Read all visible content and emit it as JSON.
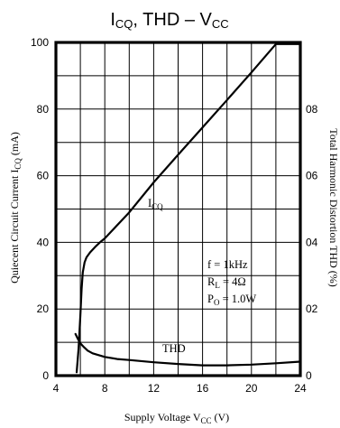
{
  "chart_data": {
    "type": "line",
    "title": {
      "main": "I",
      "sub": "CQ",
      "rest": ", THD – V",
      "sub2": "CC"
    },
    "xlabel": {
      "main": "Supply Voltage V",
      "sub": "CC",
      "rest": " (V)"
    },
    "ylabel_left": {
      "main": "Quiecent Circuit Current I",
      "sub": "CQ",
      "rest": " (mA)"
    },
    "ylabel_right": "Total Harmonic Distortion THD (%)",
    "xlim": [
      4,
      24
    ],
    "ylim_left": [
      0,
      100
    ],
    "ylim_right": [
      0,
      1.0
    ],
    "x_ticks": [
      "4",
      "8",
      "12",
      "16",
      "20",
      "24"
    ],
    "y_ticks_left": [
      "0",
      "20",
      "40",
      "60",
      "80",
      "100"
    ],
    "y_ticks_right": [
      "0",
      "02",
      "04",
      "06",
      "08"
    ],
    "grid": true,
    "series": [
      {
        "name": "I_CQ",
        "label": {
          "main": "I",
          "sub": "CQ"
        },
        "axis": "left",
        "x": [
          5.7,
          5.85,
          6.0,
          6.1,
          6.2,
          6.35,
          6.5,
          6.8,
          7.2,
          7.6,
          8.0,
          10,
          12,
          14,
          16,
          18,
          20,
          22,
          24
        ],
        "y": [
          1,
          8,
          18,
          26,
          31,
          34,
          35.5,
          37,
          38.6,
          40,
          41.2,
          49,
          58,
          66.3,
          74.5,
          82.7,
          91,
          99.5,
          99.5
        ]
      },
      {
        "name": "THD",
        "label": {
          "main": "THD"
        },
        "axis": "right",
        "x": [
          5.6,
          5.8,
          6.0,
          6.3,
          6.6,
          7.0,
          8.0,
          9.0,
          10,
          12,
          14,
          16,
          18,
          20,
          22,
          24
        ],
        "y": [
          0.125,
          0.11,
          0.097,
          0.085,
          0.075,
          0.067,
          0.056,
          0.05,
          0.047,
          0.04,
          0.035,
          0.031,
          0.031,
          0.033,
          0.037,
          0.042
        ]
      }
    ],
    "annotation": {
      "line1": {
        "main": "f = 1kHz"
      },
      "line2": {
        "main": "R",
        "sub": "L",
        "rest": " = 4Ω"
      },
      "line3": {
        "main": "P",
        "sub": "O",
        "rest": " = 1.0W"
      }
    }
  }
}
